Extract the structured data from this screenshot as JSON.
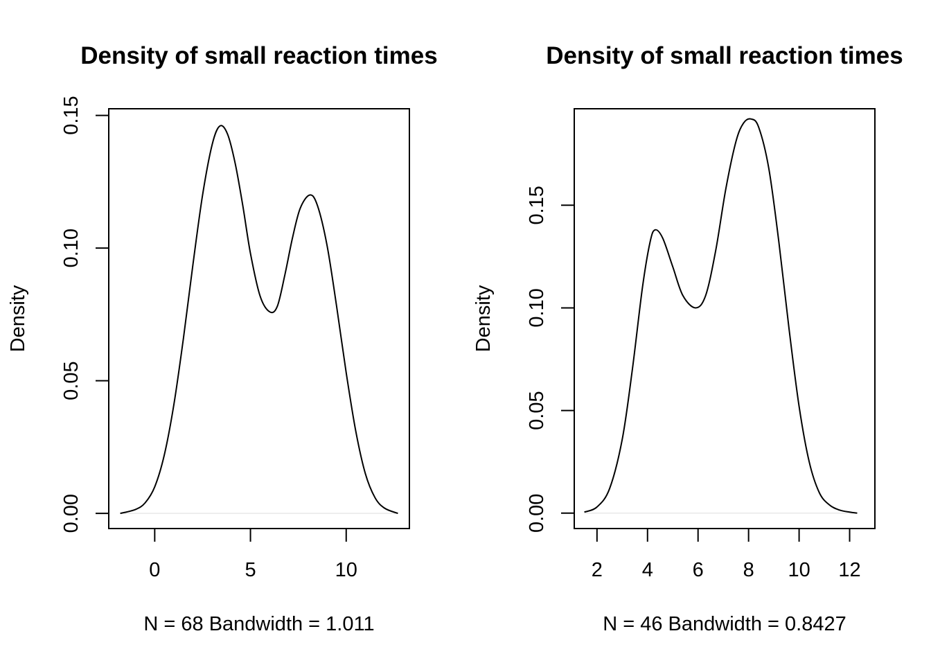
{
  "chart_data": [
    {
      "type": "line",
      "title": "Density of small reaction times",
      "xlabel": "N = 68   Bandwidth = 1.011",
      "ylabel": "Density",
      "xlim": [
        -2.4,
        13.3
      ],
      "ylim": [
        -0.0057,
        0.1525
      ],
      "xticks": [
        0,
        5,
        10
      ],
      "xtick_labels": [
        "0",
        "5",
        "10"
      ],
      "yticks": [
        0.0,
        0.05,
        0.1,
        0.15
      ],
      "ytick_labels": [
        "0.00",
        "0.05",
        "0.10",
        "0.15"
      ],
      "grid": false,
      "series": [
        {
          "x": [
            -1.8,
            -1.0,
            -0.5,
            0.0,
            0.5,
            1.0,
            1.5,
            2.0,
            2.5,
            3.0,
            3.4,
            3.8,
            4.2,
            4.6,
            5.0,
            5.5,
            6.0,
            6.4,
            6.8,
            7.2,
            7.6,
            8.1,
            8.5,
            9.0,
            9.5,
            10.0,
            10.5,
            11.0,
            11.5,
            12.0,
            12.7
          ],
          "y": [
            0.0,
            0.0015,
            0.004,
            0.01,
            0.022,
            0.041,
            0.066,
            0.094,
            0.12,
            0.139,
            0.146,
            0.143,
            0.132,
            0.116,
            0.098,
            0.082,
            0.076,
            0.078,
            0.09,
            0.104,
            0.115,
            0.12,
            0.116,
            0.101,
            0.078,
            0.053,
            0.031,
            0.015,
            0.006,
            0.002,
            0.0
          ]
        }
      ]
    },
    {
      "type": "line",
      "title": "Density of small reaction times",
      "xlabel": "N = 46   Bandwidth = 0.8427",
      "ylabel": "Density",
      "xlim": [
        1.1,
        13.0
      ],
      "ylim": [
        -0.0075,
        0.197
      ],
      "xticks": [
        2,
        4,
        6,
        8,
        10,
        12
      ],
      "xtick_labels": [
        "2",
        "4",
        "6",
        "8",
        "10",
        "12"
      ],
      "yticks": [
        0.0,
        0.05,
        0.1,
        0.15
      ],
      "ytick_labels": [
        "0.00",
        "0.05",
        "0.10",
        "0.15"
      ],
      "grid": false,
      "series": [
        {
          "x": [
            1.5,
            2.0,
            2.5,
            3.0,
            3.4,
            3.8,
            4.1,
            4.3,
            4.6,
            5.0,
            5.4,
            5.9,
            6.3,
            6.7,
            7.1,
            7.5,
            7.8,
            8.1,
            8.4,
            8.8,
            9.2,
            9.6,
            10.0,
            10.4,
            10.8,
            11.2,
            11.6,
            12.0,
            12.3
          ],
          "y": [
            0.0005,
            0.003,
            0.012,
            0.036,
            0.07,
            0.11,
            0.132,
            0.138,
            0.134,
            0.12,
            0.106,
            0.1,
            0.106,
            0.128,
            0.158,
            0.181,
            0.19,
            0.192,
            0.188,
            0.168,
            0.132,
            0.09,
            0.052,
            0.025,
            0.01,
            0.004,
            0.0015,
            0.0005,
            0.0
          ]
        }
      ]
    }
  ]
}
